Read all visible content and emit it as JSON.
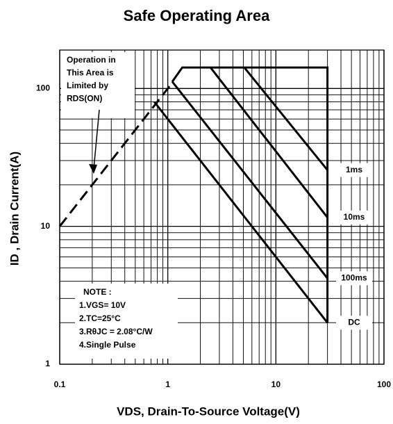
{
  "chart_data": {
    "type": "line",
    "title": "Safe Operating Area",
    "xlabel": "VDS, Drain-To-Source Voltage(V)",
    "ylabel": "ID , Drain Current(A)",
    "log_x": true,
    "log_y": true,
    "grid": true,
    "xlim": [
      0.1,
      100
    ],
    "ylim": [
      1,
      190
    ],
    "xticks": [
      0.1,
      1,
      10,
      100
    ],
    "yticks": [
      1,
      10,
      100
    ],
    "series": [
      {
        "dashed": true,
        "x": [
          0.1,
          1.1
        ],
        "y": [
          10,
          110
        ]
      },
      {
        "x": [
          1.1,
          1.36,
          30,
          30
        ],
        "y": [
          112,
          142,
          142,
          2
        ]
      },
      {
        "name": "1ms",
        "x": [
          5.1,
          30
        ],
        "y": [
          142,
          25.6
        ]
      },
      {
        "name": "10ms",
        "x": [
          2.48,
          30
        ],
        "y": [
          142,
          11.6
        ]
      },
      {
        "name": "100ms",
        "x": [
          1.1,
          30
        ],
        "y": [
          112,
          4.2
        ]
      },
      {
        "name": "DC",
        "x": [
          0.75,
          30
        ],
        "y": [
          80,
          2
        ]
      }
    ],
    "annotations": {
      "rds_on": [
        "Operation in",
        "This Area is",
        "Limited by",
        "RDS(ON)"
      ],
      "note": [
        "NOTE :",
        "1.VGS= 10V",
        "2.TC=25°C",
        "3.RθJC = 2.08°C/W",
        "4.Single Pulse"
      ]
    }
  }
}
